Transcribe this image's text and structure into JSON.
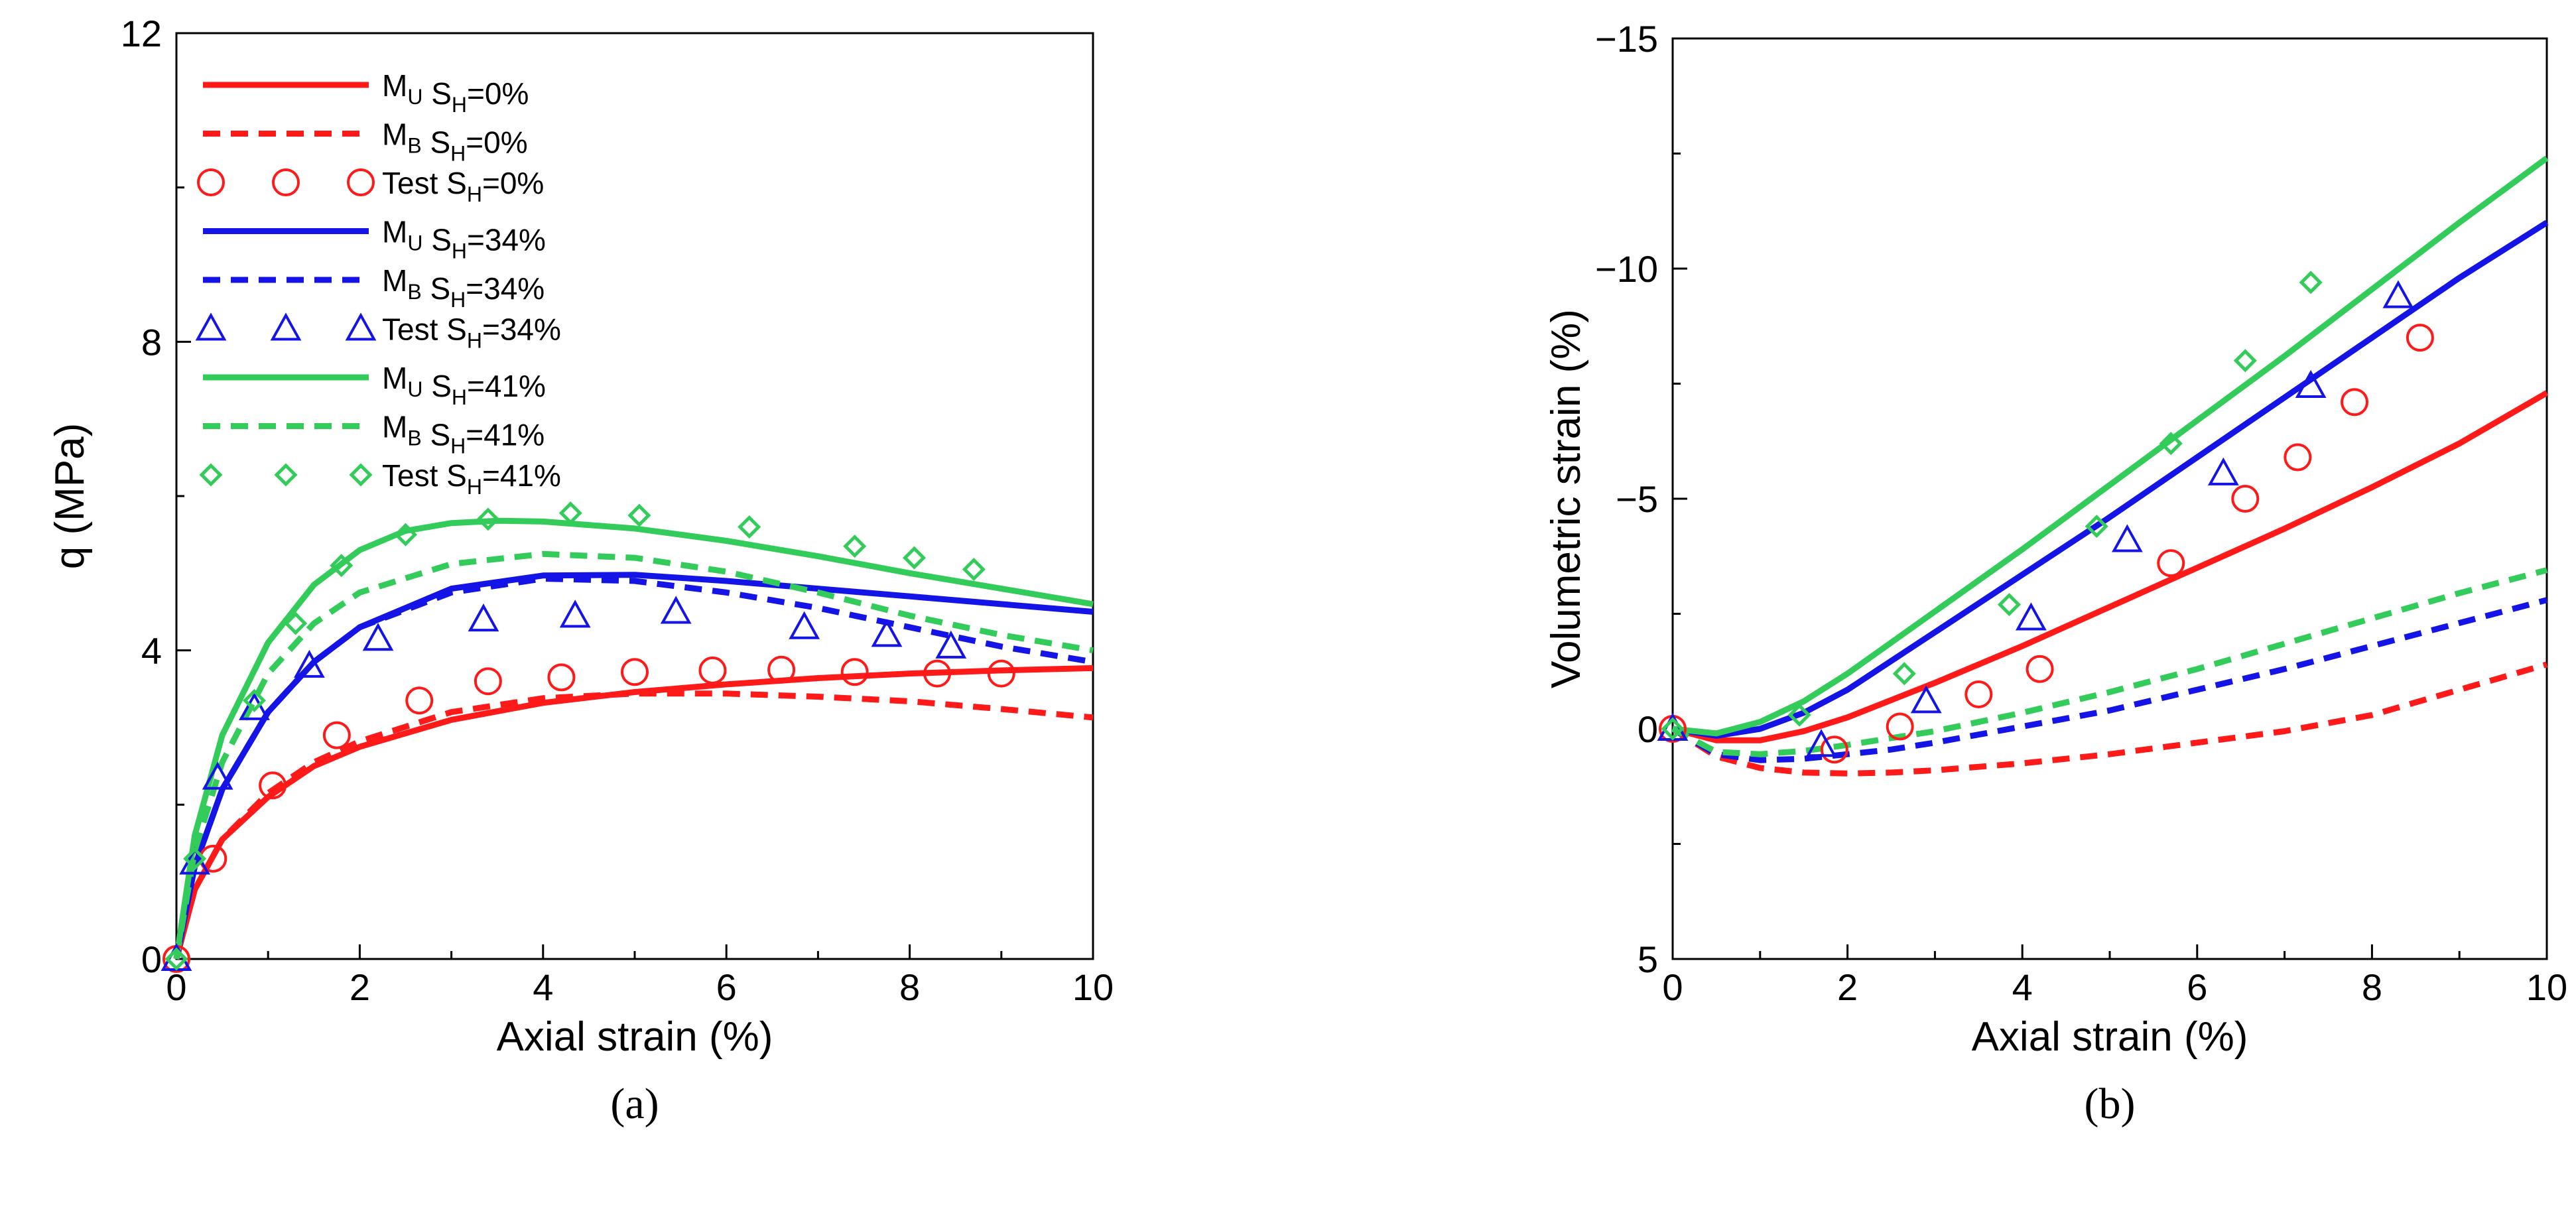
{
  "chart_data": [
    {
      "panel_label": "(a)",
      "type": "line",
      "xlabel": "Axial strain (%)",
      "ylabel": "q (MPa)",
      "xlim": [
        0,
        10
      ],
      "ylim": [
        0,
        12
      ],
      "xticks": [
        0,
        2,
        4,
        6,
        8,
        10
      ],
      "yticks": [
        0,
        4,
        8,
        12
      ],
      "grid": false,
      "legend_position": "top-left",
      "series": [
        {
          "base": "M",
          "sub": "U",
          "sh": "0%",
          "style": "solid",
          "color": "#ff1a1a",
          "x": [
            0,
            0.2,
            0.5,
            1,
            1.5,
            2,
            3,
            4,
            5,
            6,
            7,
            8,
            9,
            10
          ],
          "y": [
            0,
            0.9,
            1.55,
            2.1,
            2.5,
            2.75,
            3.1,
            3.32,
            3.46,
            3.56,
            3.64,
            3.7,
            3.74,
            3.77
          ]
        },
        {
          "base": "M",
          "sub": "B",
          "sh": "0%",
          "style": "dashed",
          "color": "#ff1a1a",
          "x": [
            0,
            0.2,
            0.5,
            1,
            1.5,
            2,
            3,
            4,
            5,
            6,
            7,
            8,
            9,
            10
          ],
          "y": [
            0,
            0.9,
            1.55,
            2.15,
            2.55,
            2.82,
            3.2,
            3.38,
            3.44,
            3.44,
            3.4,
            3.34,
            3.24,
            3.13
          ]
        },
        {
          "base": "Test",
          "sub": "",
          "sh": "0%",
          "style": "marker-circle",
          "color": "#ff1a1a",
          "x": [
            0,
            0.4,
            1.05,
            1.75,
            2.65,
            3.4,
            4.2,
            5.0,
            5.85,
            6.6,
            7.4,
            8.3,
            9.0
          ],
          "y": [
            0,
            1.3,
            2.25,
            2.9,
            3.35,
            3.6,
            3.65,
            3.72,
            3.74,
            3.75,
            3.72,
            3.7,
            3.7
          ]
        },
        {
          "base": "M",
          "sub": "U",
          "sh": "34%",
          "style": "solid",
          "color": "#1414e6",
          "x": [
            0,
            0.2,
            0.5,
            1,
            1.5,
            2,
            3,
            4,
            5,
            6,
            7,
            8,
            9,
            10
          ],
          "y": [
            0,
            1.2,
            2.2,
            3.2,
            3.85,
            4.3,
            4.8,
            4.97,
            4.98,
            4.9,
            4.8,
            4.7,
            4.6,
            4.5
          ]
        },
        {
          "base": "M",
          "sub": "B",
          "sh": "34%",
          "style": "dashed",
          "color": "#1414e6",
          "x": [
            0,
            0.2,
            0.5,
            1,
            1.5,
            2,
            3,
            4,
            5,
            6,
            7,
            8,
            9,
            10
          ],
          "y": [
            0,
            1.2,
            2.2,
            3.2,
            3.85,
            4.3,
            4.75,
            4.93,
            4.9,
            4.75,
            4.55,
            4.3,
            4.05,
            3.85
          ]
        },
        {
          "base": "Test",
          "sub": "",
          "sh": "34%",
          "style": "marker-triangle",
          "color": "#1414e6",
          "x": [
            0,
            0.2,
            0.45,
            0.85,
            1.45,
            2.2,
            3.35,
            4.35,
            5.45,
            6.85,
            7.75,
            8.45
          ],
          "y": [
            0,
            1.25,
            2.35,
            3.25,
            3.8,
            4.15,
            4.4,
            4.45,
            4.5,
            4.3,
            4.2,
            4.05
          ]
        },
        {
          "base": "M",
          "sub": "U",
          "sh": "41%",
          "style": "solid",
          "color": "#33cc5a",
          "x": [
            0,
            0.2,
            0.5,
            1,
            1.5,
            2,
            2.5,
            3,
            3.5,
            4,
            5,
            6,
            7,
            8,
            9,
            10
          ],
          "y": [
            0,
            1.6,
            2.9,
            4.1,
            4.85,
            5.3,
            5.55,
            5.65,
            5.68,
            5.67,
            5.58,
            5.42,
            5.22,
            5.0,
            4.8,
            4.6
          ]
        },
        {
          "base": "M",
          "sub": "B",
          "sh": "41%",
          "style": "dashed",
          "color": "#33cc5a",
          "x": [
            0,
            0.2,
            0.5,
            1,
            1.5,
            2,
            3,
            4,
            5,
            6,
            7,
            8,
            9,
            10
          ],
          "y": [
            0,
            1.4,
            2.55,
            3.7,
            4.35,
            4.75,
            5.12,
            5.25,
            5.2,
            5.02,
            4.75,
            4.45,
            4.2,
            4.0
          ]
        },
        {
          "base": "Test",
          "sub": "",
          "sh": "41%",
          "style": "marker-diamond",
          "color": "#33cc5a",
          "x": [
            0,
            0.2,
            0.85,
            1.3,
            1.8,
            2.5,
            3.4,
            4.3,
            5.05,
            6.25,
            7.4,
            8.05,
            8.7
          ],
          "y": [
            0,
            1.3,
            3.35,
            4.35,
            5.1,
            5.5,
            5.7,
            5.78,
            5.75,
            5.6,
            5.35,
            5.2,
            5.05
          ]
        }
      ]
    },
    {
      "panel_label": "(b)",
      "type": "line",
      "xlabel": "Axial strain (%)",
      "ylabel": "Volumetric strain (%)",
      "xlim": [
        0,
        10
      ],
      "ylim": [
        5,
        -15
      ],
      "yaxis_inverted": true,
      "xticks": [
        0,
        2,
        4,
        6,
        8,
        10
      ],
      "yticks": [
        5,
        0,
        -5,
        -10,
        -15
      ],
      "ytick_labels": [
        "5",
        "0",
        "−5",
        "−10",
        "−15"
      ],
      "grid": false,
      "series": [
        {
          "sh": "0%",
          "base": "M",
          "sub": "U",
          "style": "solid",
          "color": "#ff1a1a",
          "x": [
            0,
            0.5,
            1,
            1.5,
            2,
            3,
            4,
            5,
            6,
            7,
            8,
            9,
            10
          ],
          "y": [
            0,
            0.25,
            0.25,
            0.05,
            -0.25,
            -1.0,
            -1.8,
            -2.65,
            -3.5,
            -4.35,
            -5.25,
            -6.2,
            -7.3
          ]
        },
        {
          "sh": "0%",
          "base": "M",
          "sub": "B",
          "style": "dashed",
          "color": "#ff1a1a",
          "x": [
            0,
            0.5,
            1,
            1.5,
            2,
            2.5,
            3,
            4,
            5,
            6,
            7,
            8,
            9,
            10
          ],
          "y": [
            0,
            0.6,
            0.85,
            0.95,
            0.97,
            0.95,
            0.9,
            0.75,
            0.55,
            0.3,
            0.05,
            -0.3,
            -0.85,
            -1.4
          ]
        },
        {
          "sh": "0%",
          "base": "Test",
          "sub": "",
          "style": "marker-circle",
          "color": "#ff1a1a",
          "x": [
            0,
            1.85,
            2.6,
            3.5,
            4.2,
            5.7,
            6.55,
            7.15,
            7.8,
            8.55
          ],
          "y": [
            0,
            0.45,
            -0.05,
            -0.75,
            -1.3,
            -3.6,
            -5.0,
            -5.9,
            -7.1,
            -8.5
          ]
        },
        {
          "sh": "34%",
          "base": "M",
          "sub": "U",
          "style": "solid",
          "color": "#1414e6",
          "x": [
            0,
            0.5,
            1,
            1.5,
            2,
            3,
            4,
            5,
            6,
            7,
            8,
            9,
            10
          ],
          "y": [
            0,
            0.15,
            0.0,
            -0.35,
            -0.85,
            -2.1,
            -3.35,
            -4.6,
            -5.9,
            -7.2,
            -8.5,
            -9.8,
            -11.0
          ]
        },
        {
          "sh": "34%",
          "base": "M",
          "sub": "B",
          "style": "dashed",
          "color": "#1414e6",
          "x": [
            0,
            0.5,
            1,
            1.5,
            2,
            2.5,
            3,
            4,
            5,
            6,
            7,
            8,
            9,
            10
          ],
          "y": [
            0,
            0.55,
            0.68,
            0.65,
            0.55,
            0.45,
            0.3,
            -0.05,
            -0.4,
            -0.85,
            -1.3,
            -1.8,
            -2.3,
            -2.8
          ]
        },
        {
          "sh": "34%",
          "base": "Test",
          "sub": "",
          "style": "marker-triangle",
          "color": "#1414e6",
          "x": [
            0,
            1.7,
            2.9,
            4.1,
            5.2,
            6.3,
            7.3,
            8.3
          ],
          "y": [
            0,
            0.35,
            -0.6,
            -2.4,
            -4.1,
            -5.55,
            -7.45,
            -9.4
          ]
        },
        {
          "sh": "41%",
          "base": "M",
          "sub": "U",
          "style": "solid",
          "color": "#33cc5a",
          "x": [
            0,
            0.5,
            1,
            1.5,
            2,
            3,
            4,
            5,
            6,
            7,
            8,
            9,
            10
          ],
          "y": [
            0,
            0.1,
            -0.15,
            -0.6,
            -1.2,
            -2.55,
            -3.9,
            -5.3,
            -6.7,
            -8.1,
            -9.55,
            -11.0,
            -12.4
          ]
        },
        {
          "sh": "41%",
          "base": "M",
          "sub": "B",
          "style": "dashed",
          "color": "#33cc5a",
          "x": [
            0,
            0.5,
            1,
            1.5,
            2,
            2.5,
            3,
            4,
            5,
            6,
            7,
            8,
            9,
            10
          ],
          "y": [
            0,
            0.5,
            0.55,
            0.48,
            0.35,
            0.2,
            0.05,
            -0.35,
            -0.8,
            -1.3,
            -1.85,
            -2.4,
            -2.95,
            -3.45
          ]
        },
        {
          "sh": "41%",
          "base": "Test",
          "sub": "",
          "style": "marker-diamond",
          "color": "#33cc5a",
          "x": [
            0,
            1.45,
            2.65,
            3.85,
            4.85,
            5.7,
            6.55,
            7.3
          ],
          "y": [
            0,
            -0.3,
            -1.2,
            -2.7,
            -4.4,
            -6.2,
            -8.0,
            -9.7
          ]
        }
      ]
    }
  ]
}
